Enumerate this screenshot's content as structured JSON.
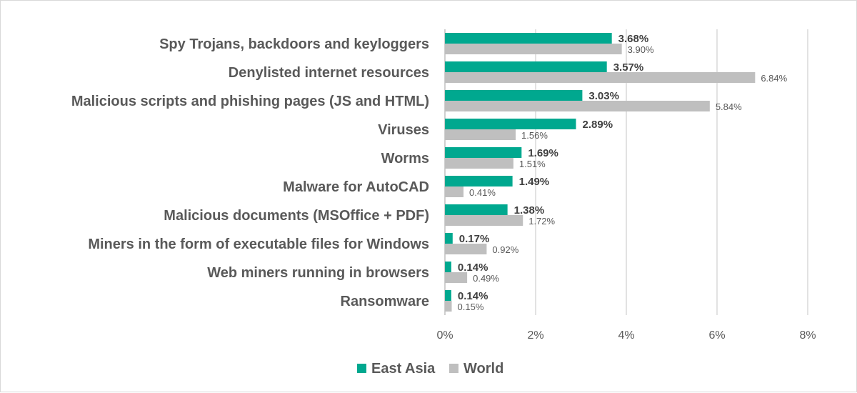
{
  "chart_data": {
    "type": "bar",
    "orientation": "horizontal",
    "categories": [
      "Spy Trojans, backdoors and keyloggers",
      "Denylisted internet resources",
      "Malicious scripts and phishing pages (JS and HTML)",
      "Viruses",
      "Worms",
      "Malware for AutoCAD",
      "Malicious documents (MSOffice + PDF)",
      "Miners in the form of executable files for Windows",
      "Web miners running in browsers",
      "Ransomware"
    ],
    "series": [
      {
        "name": "East Asia",
        "color": "#00a88f",
        "values": [
          3.68,
          3.57,
          3.03,
          2.89,
          1.69,
          1.49,
          1.38,
          0.17,
          0.14,
          0.14
        ],
        "labels": [
          "3.68%",
          "3.57%",
          "3.03%",
          "2.89%",
          "1.69%",
          "1.49%",
          "1.38%",
          "0.17%",
          "0.14%",
          "0.14%"
        ]
      },
      {
        "name": "World",
        "color": "#bfbfbf",
        "values": [
          3.9,
          6.84,
          5.84,
          1.56,
          1.51,
          0.41,
          1.72,
          0.92,
          0.49,
          0.15
        ],
        "labels": [
          "3.90%",
          "6.84%",
          "5.84%",
          "1.56%",
          "1.51%",
          "0.41%",
          "1.72%",
          "0.92%",
          "0.49%",
          "0.15%"
        ]
      }
    ],
    "xlim": [
      0,
      8
    ],
    "xticks": [
      0,
      2,
      4,
      6,
      8
    ],
    "xtick_labels": [
      "0%",
      "2%",
      "4%",
      "6%",
      "8%"
    ],
    "title": "",
    "xlabel": "",
    "ylabel": "",
    "grid": "vertical",
    "legend_position": "bottom-center",
    "gridline_color": "#d9d9d9",
    "axis_line_color": "#bfbfbf"
  }
}
